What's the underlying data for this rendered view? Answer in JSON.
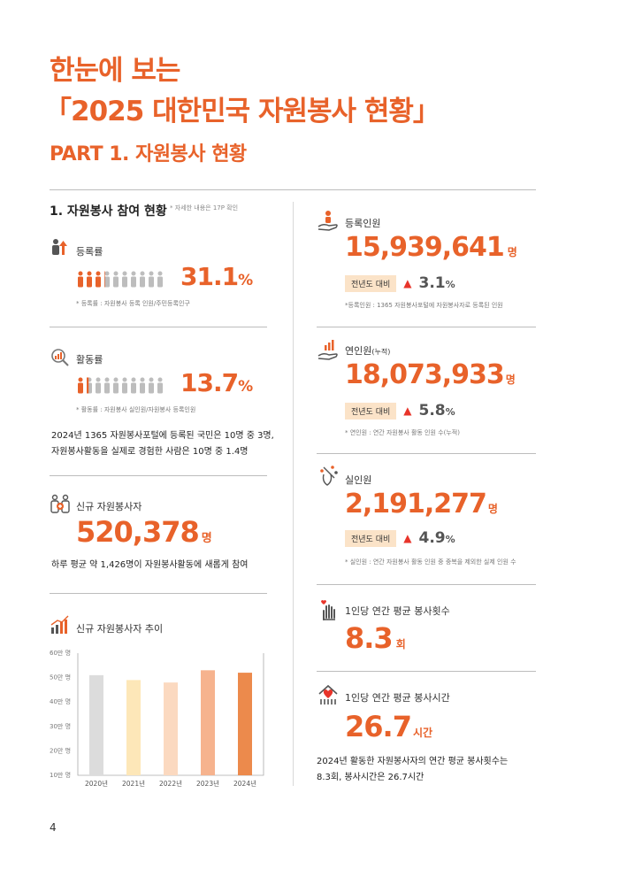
{
  "header": {
    "title_line1": "한눈에 보는",
    "title_line2": "「2025 대한민국 자원봉사 현황」",
    "part_title": "PART 1. 자원봉사 현황"
  },
  "section1": {
    "title": "1. 자원봉사 참여 현황",
    "note": "* 자세한 내용은 17P 확인"
  },
  "registration_rate": {
    "label": "등록률",
    "value": "31.1",
    "unit": "%",
    "note": "* 등록률 : 자원봉사 등록 인원/주민등록인구"
  },
  "activity_rate": {
    "label": "활동률",
    "value": "13.7",
    "unit": "%",
    "note": "* 활동률 : 자원봉사 실인원/자원봉사 등록인원",
    "summary_line1": "2024년 1365 자원봉사포털에 등록된 국민은 10명 중 3명,",
    "summary_line2": "자원봉사활동을 실제로 경험한 사람은 10명 중 1.4명"
  },
  "new_volunteers": {
    "label": "신규 자원봉사자",
    "value": "520,378",
    "unit": "명",
    "summary": "하루 평균 약 1,426명이 자원봉사활동에 새롭게 참여"
  },
  "trend": {
    "label": "신규 자원봉사자 추이"
  },
  "chart_data": {
    "type": "bar",
    "categories": [
      "2020년",
      "2021년",
      "2022년",
      "2023년",
      "2024년"
    ],
    "values": [
      51,
      49,
      48,
      53,
      52
    ],
    "ylim": [
      10,
      60
    ],
    "y_ticks": [
      "10만 명",
      "20만 명",
      "30만 명",
      "40만 명",
      "50만 명",
      "60만 명"
    ],
    "colors": [
      "#dcdcdc",
      "#fde7b8",
      "#fbd9c0",
      "#f6b38e",
      "#ec8a4c"
    ],
    "grid": false
  },
  "registered": {
    "label": "등록인원",
    "value": "15,939,641",
    "unit": "명",
    "badge": "전년도 대비",
    "change": "3.1",
    "change_unit": "%",
    "note": "*등록인원 : 1365 자원봉사포털에 자원봉사자로 등록된 인원"
  },
  "cumulative": {
    "label": "연인원",
    "label_suffix": "(누적)",
    "value": "18,073,933",
    "unit": "명",
    "badge": "전년도 대비",
    "change": "5.8",
    "change_unit": "%",
    "note": "* 연인원 : 연간 자원봉사 활동 인원 수(누적)"
  },
  "actual": {
    "label": "실인원",
    "value": "2,191,277",
    "unit": "명",
    "badge": "전년도 대비",
    "change": "4.9",
    "change_unit": "%",
    "note": "* 실인원 : 연간 자원봉사 활동 인원 중 중복을 제외한 실제 인원 수"
  },
  "avg_count": {
    "label": "1인당 연간 평균 봉사횟수",
    "value": "8.3",
    "unit": "회"
  },
  "avg_hours": {
    "label": "1인당 연간 평균 봉사시간",
    "value": "26.7",
    "unit": "시간",
    "summary_line1": "2024년 활동한 자원봉사자의 연간 평균 봉사횟수는",
    "summary_line2": "8.3회, 봉사시간은 26.7시간"
  },
  "page_number": "4",
  "colors": {
    "accent": "#e8622a",
    "badge_bg": "#fbe3c8",
    "up_arrow": "#e8342a"
  }
}
